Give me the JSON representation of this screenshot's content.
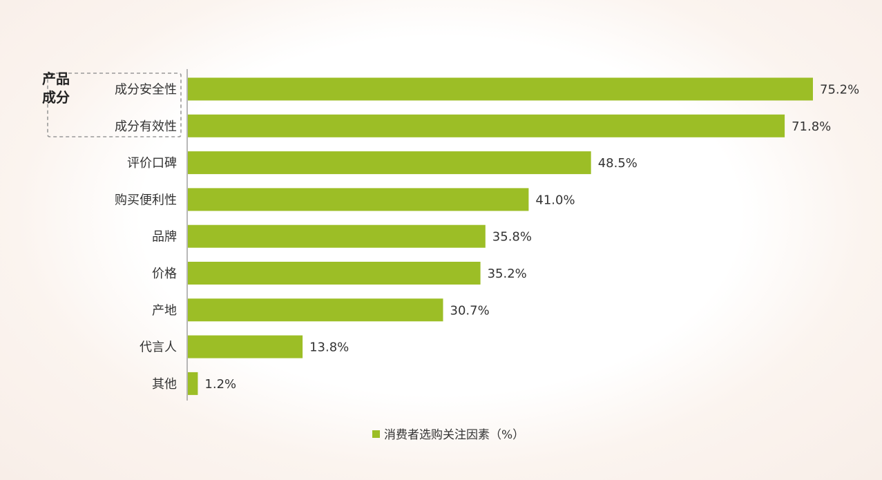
{
  "chart_data": {
    "type": "bar",
    "orientation": "horizontal",
    "categories": [
      "成分安全性",
      "成分有效性",
      "评价口碑",
      "购买便利性",
      "品牌",
      "价格",
      "产地",
      "代言人",
      "其他"
    ],
    "series": [
      {
        "name": "消费者选购关注因素（%）",
        "values": [
          75.2,
          71.8,
          48.5,
          41.0,
          35.8,
          35.2,
          30.7,
          13.8,
          1.2
        ],
        "value_labels": [
          "75.2%",
          "71.8%",
          "48.5%",
          "41.0%",
          "35.8%",
          "35.2%",
          "30.7%",
          "13.8%",
          "1.2%"
        ]
      }
    ],
    "group": {
      "label_line1": "产品",
      "label_line2": "成分",
      "members": [
        "成分安全性",
        "成分有效性"
      ]
    },
    "xlim": [
      0,
      80
    ],
    "grid": false,
    "legend_position": "bottom-center",
    "bar_color": "#9cbe26",
    "axis_color": "#999999",
    "group_border_color": "#999999"
  }
}
